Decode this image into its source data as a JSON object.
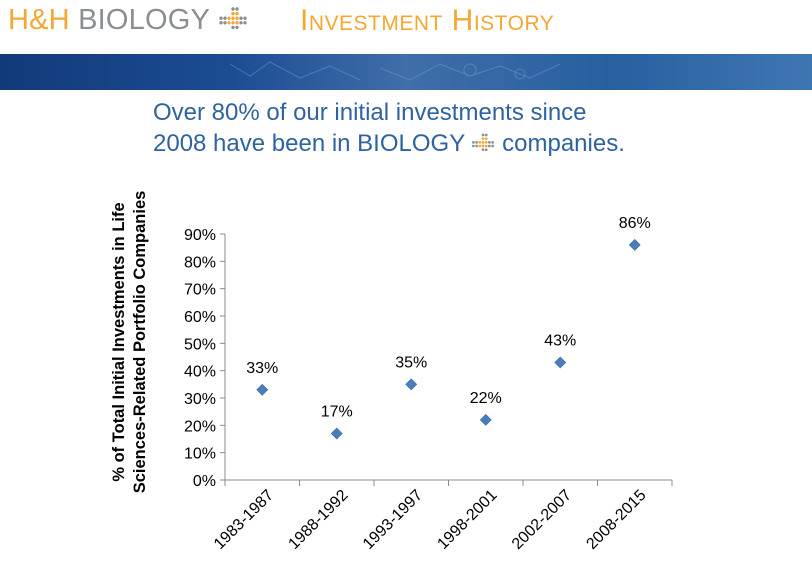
{
  "header": {
    "brand_prefix": "H&H",
    "brand_name": "BIOLOGY",
    "section_title": "Investment History",
    "logo_icon": "plus-dots-icon",
    "brand_color": "#f4a733",
    "brand_gray": "#8a8f93"
  },
  "subtitle": {
    "line1": "Over 80% of our initial investments since",
    "line2_pre": "2008 have been in BIOLOGY",
    "line2_post": "companies."
  },
  "chart_data": {
    "type": "scatter",
    "title": "",
    "ylabel_line1": "% of Total Initial Investments in Life",
    "ylabel_line2": "Sciences-Related Portfolio Companies",
    "xlabel": "",
    "categories": [
      "1983-1987",
      "1988-1992",
      "1993-1997",
      "1998-2001",
      "2002-2007",
      "2008-2015"
    ],
    "values": [
      33,
      17,
      35,
      22,
      43,
      86
    ],
    "data_labels": [
      "33%",
      "17%",
      "35%",
      "22%",
      "43%",
      "86%"
    ],
    "y_ticks": [
      "0%",
      "10%",
      "20%",
      "30%",
      "40%",
      "50%",
      "60%",
      "70%",
      "80%",
      "90%"
    ],
    "ylim": [
      0,
      90
    ],
    "grid": false,
    "legend": "none",
    "marker": "diamond",
    "marker_color": "#4a7ebb",
    "text_color": "#000000"
  }
}
